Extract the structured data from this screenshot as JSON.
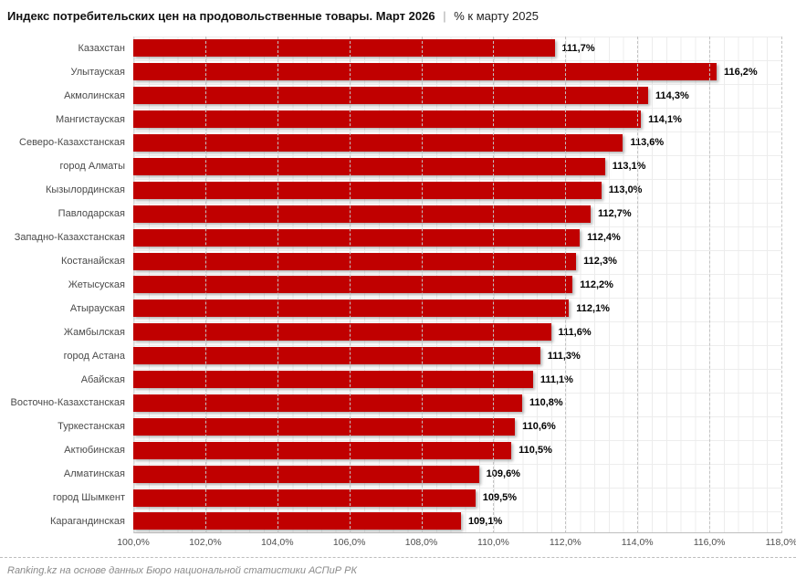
{
  "title": {
    "main": "Индекс потребительских цен на продовольственные товары. Март 2026",
    "separator": "|",
    "subtitle": "% к марту 2025"
  },
  "footer": {
    "note": "Ranking.kz на основе данных Бюро национальной статистики АСПиР РК"
  },
  "colors": {
    "bar": "#c00000",
    "value_label": "#000000",
    "category_label": "#4a4a4a",
    "grid_minor": "#ececec",
    "grid_major_dashed": "#c3c3c3",
    "axis_line": "#bfbfbf"
  },
  "chart_data": {
    "type": "bar",
    "orientation": "horizontal",
    "title": "Индекс потребительских цен на продовольственные товары. Март 2026 | % к марту 2025",
    "xlabel": "",
    "ylabel": "",
    "xlim": [
      100,
      118
    ],
    "grid": true,
    "legend": false,
    "categories": [
      "Казахстан",
      "Улытауская",
      "Акмолинская",
      "Мангистауская",
      "Северо-Казахстанская",
      "город Алматы",
      "Кызылординская",
      "Павлодарская",
      "Западно-Казахстанская",
      "Костанайская",
      "Жетысуская",
      "Атырауская",
      "Жамбылская",
      "город Астана",
      "Абайская",
      "Восточно-Казахстанская",
      "Туркестанская",
      "Актюбинская",
      "Алматинская",
      "город Шымкент",
      "Карагандинская"
    ],
    "values": [
      111.7,
      116.2,
      114.3,
      114.1,
      113.6,
      113.1,
      113.0,
      112.7,
      112.4,
      112.3,
      112.2,
      112.1,
      111.6,
      111.3,
      111.1,
      110.8,
      110.6,
      110.5,
      109.6,
      109.5,
      109.1
    ],
    "value_labels": [
      "111,7%",
      "116,2%",
      "114,3%",
      "114,1%",
      "113,6%",
      "113,1%",
      "113,0%",
      "112,7%",
      "112,4%",
      "112,3%",
      "112,2%",
      "112,1%",
      "111,6%",
      "111,3%",
      "111,1%",
      "110,8%",
      "110,6%",
      "110,5%",
      "109,6%",
      "109,5%",
      "109,1%"
    ],
    "x_ticks": [
      "100,0%",
      "102,0%",
      "104,0%",
      "106,0%",
      "108,0%",
      "110,0%",
      "112,0%",
      "114,0%",
      "116,0%",
      "118,0%"
    ],
    "x_tick_values": [
      100,
      102,
      104,
      106,
      108,
      110,
      112,
      114,
      116,
      118
    ]
  }
}
